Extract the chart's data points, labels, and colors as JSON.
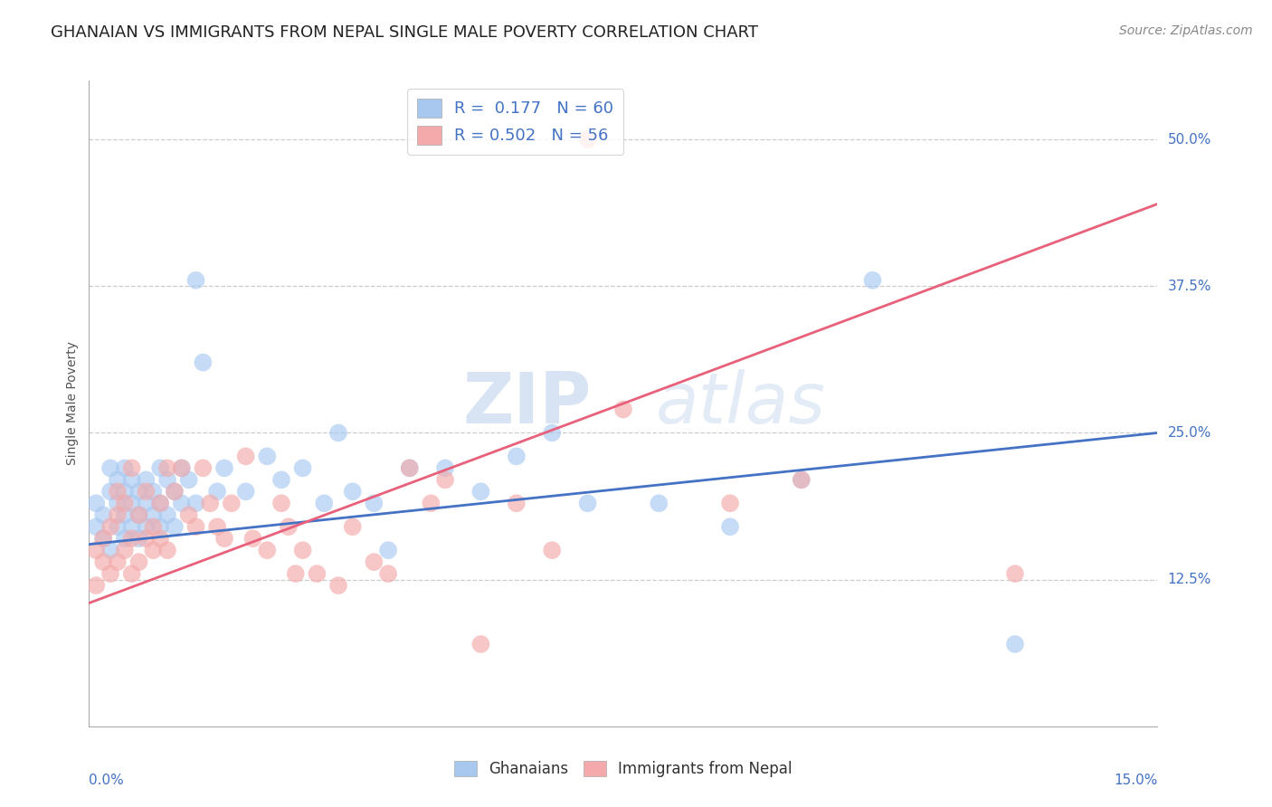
{
  "title": "GHANAIAN VS IMMIGRANTS FROM NEPAL SINGLE MALE POVERTY CORRELATION CHART",
  "source": "Source: ZipAtlas.com",
  "ylabel": "Single Male Poverty",
  "ylabel_ticks": [
    "12.5%",
    "25.0%",
    "37.5%",
    "50.0%"
  ],
  "ylabel_tick_vals": [
    0.125,
    0.25,
    0.375,
    0.5
  ],
  "xlim": [
    0.0,
    0.15
  ],
  "ylim": [
    0.0,
    0.55
  ],
  "ghanaian_color": "#A8C8F0",
  "nepal_color": "#F4AAAA",
  "ghanaian_line_color": "#4472C4",
  "nepal_line_color": "#E8607A",
  "tick_color": "#4472C4",
  "legend_R1": "R =  0.177",
  "legend_N1": "N = 60",
  "legend_R2": "R = 0.502",
  "legend_N2": "N = 56",
  "background_color": "#FFFFFF",
  "grid_color": "#CCCCCC",
  "gh_line_x0": 0.0,
  "gh_line_x1": 0.15,
  "gh_line_y0": 0.155,
  "gh_line_y1": 0.25,
  "np_line_x0": 0.0,
  "np_line_x1": 0.15,
  "np_line_y0": 0.105,
  "np_line_y1": 0.445,
  "ghanaian_scatter_x": [
    0.001,
    0.001,
    0.002,
    0.002,
    0.003,
    0.003,
    0.003,
    0.004,
    0.004,
    0.004,
    0.005,
    0.005,
    0.005,
    0.005,
    0.006,
    0.006,
    0.006,
    0.007,
    0.007,
    0.007,
    0.008,
    0.008,
    0.008,
    0.009,
    0.009,
    0.01,
    0.01,
    0.01,
    0.011,
    0.011,
    0.012,
    0.012,
    0.013,
    0.013,
    0.014,
    0.015,
    0.015,
    0.016,
    0.018,
    0.019,
    0.022,
    0.025,
    0.027,
    0.03,
    0.033,
    0.035,
    0.037,
    0.04,
    0.042,
    0.045,
    0.05,
    0.055,
    0.06,
    0.065,
    0.07,
    0.08,
    0.09,
    0.1,
    0.11,
    0.13
  ],
  "ghanaian_scatter_y": [
    0.17,
    0.19,
    0.16,
    0.18,
    0.15,
    0.2,
    0.22,
    0.17,
    0.21,
    0.19,
    0.16,
    0.18,
    0.2,
    0.22,
    0.17,
    0.21,
    0.19,
    0.18,
    0.16,
    0.2,
    0.17,
    0.19,
    0.21,
    0.18,
    0.2,
    0.17,
    0.19,
    0.22,
    0.18,
    0.21,
    0.17,
    0.2,
    0.19,
    0.22,
    0.21,
    0.19,
    0.38,
    0.31,
    0.2,
    0.22,
    0.2,
    0.23,
    0.21,
    0.22,
    0.19,
    0.25,
    0.2,
    0.19,
    0.15,
    0.22,
    0.22,
    0.2,
    0.23,
    0.25,
    0.19,
    0.19,
    0.17,
    0.21,
    0.38,
    0.07
  ],
  "nepal_scatter_x": [
    0.001,
    0.001,
    0.002,
    0.002,
    0.003,
    0.003,
    0.004,
    0.004,
    0.004,
    0.005,
    0.005,
    0.006,
    0.006,
    0.006,
    0.007,
    0.007,
    0.008,
    0.008,
    0.009,
    0.009,
    0.01,
    0.01,
    0.011,
    0.011,
    0.012,
    0.013,
    0.014,
    0.015,
    0.016,
    0.017,
    0.018,
    0.019,
    0.02,
    0.022,
    0.023,
    0.025,
    0.027,
    0.028,
    0.029,
    0.03,
    0.032,
    0.035,
    0.037,
    0.04,
    0.042,
    0.045,
    0.048,
    0.05,
    0.055,
    0.06,
    0.065,
    0.07,
    0.075,
    0.09,
    0.1,
    0.13
  ],
  "nepal_scatter_y": [
    0.15,
    0.12,
    0.16,
    0.14,
    0.13,
    0.17,
    0.18,
    0.14,
    0.2,
    0.15,
    0.19,
    0.16,
    0.13,
    0.22,
    0.14,
    0.18,
    0.16,
    0.2,
    0.15,
    0.17,
    0.16,
    0.19,
    0.22,
    0.15,
    0.2,
    0.22,
    0.18,
    0.17,
    0.22,
    0.19,
    0.17,
    0.16,
    0.19,
    0.23,
    0.16,
    0.15,
    0.19,
    0.17,
    0.13,
    0.15,
    0.13,
    0.12,
    0.17,
    0.14,
    0.13,
    0.22,
    0.19,
    0.21,
    0.07,
    0.19,
    0.15,
    0.5,
    0.27,
    0.19,
    0.21,
    0.13
  ],
  "title_fontsize": 13,
  "axis_label_fontsize": 10,
  "tick_fontsize": 11,
  "legend_fontsize": 13,
  "source_fontsize": 10
}
